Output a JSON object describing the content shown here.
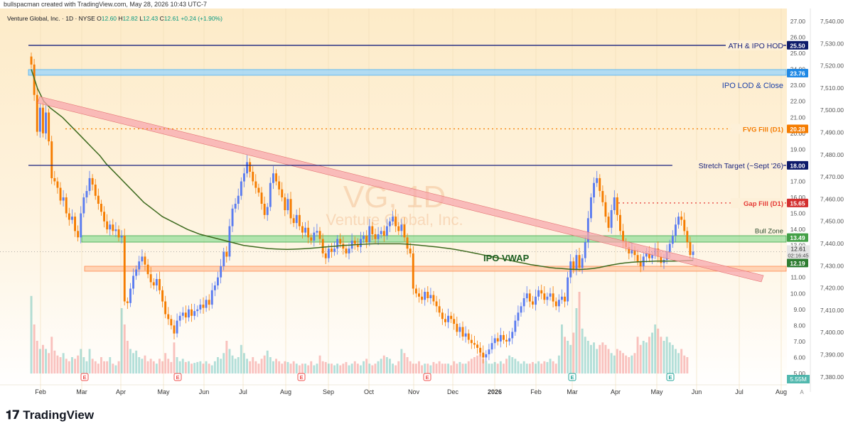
{
  "header": {
    "credit": "bullspacman created with TradingView.com, May 28, 2026 10:43 UTC-7"
  },
  "chart_data": {
    "type": "candlestick",
    "legend": {
      "symbol": "Venture Global, Inc. · 1D · NYSE",
      "open_label": "O",
      "open": "12.60",
      "high_label": "H",
      "high": "12.82",
      "low_label": "L",
      "low": "12.43",
      "close_label": "C",
      "close": "12.61",
      "change": "+0.24 (+1.90%)"
    },
    "watermark": {
      "ticker": "VG, 1D",
      "name": "Venture Global, Inc."
    },
    "left_axis_ticks": [
      "27.00",
      "26.00",
      "25.00",
      "24.00",
      "23.00",
      "22.00",
      "21.00",
      "20.00",
      "19.00",
      "18.00",
      "17.00",
      "16.00",
      "15.00",
      "14.00",
      "13.00",
      "12.00",
      "11.00",
      "10.00",
      "9.00",
      "8.00",
      "7.00",
      "6.00",
      "5.00"
    ],
    "right_axis_ticks": [
      "7,540.00",
      "7,530.00",
      "7,520.00",
      "7,510.00",
      "7,500.00",
      "7,490.00",
      "7,480.00",
      "7,470.00",
      "7,460.00",
      "7,450.00",
      "7,440.00",
      "7,430.00",
      "7,420.00",
      "7,410.00",
      "7,400.00",
      "7,390.00",
      "7,380.00"
    ],
    "x_ticks": [
      "Feb",
      "Mar",
      "Apr",
      "May",
      "Jun",
      "Jul",
      "Aug",
      "Sep",
      "Oct",
      "Nov",
      "Dec",
      "2026",
      "Feb",
      "Mar",
      "Apr",
      "May",
      "Jun",
      "Jul",
      "Aug"
    ],
    "ylim": [
      4.5,
      27.5
    ],
    "levels": [
      {
        "label": "ATH & IPO HOD",
        "price": 25.5,
        "tag": "25.50",
        "color": "#1a237e",
        "style": "solid",
        "tagColor": "#0d1b6b"
      },
      {
        "label": "IPO LOD & Close",
        "price": 23.76,
        "tag": "23.76",
        "color": "#2196f3",
        "style": "zone",
        "tagColor": "#1e88e5"
      },
      {
        "label": "FVG Fill (D1)",
        "price": 20.28,
        "tag": "20.28",
        "color": "#f57c00",
        "style": "dotted",
        "tagColor": "#f57c00"
      },
      {
        "label": "Stretch Target (~Sept '26)",
        "price": 18.0,
        "tag": "18.00",
        "color": "#1a237e",
        "style": "solid",
        "tagColor": "#0d1b6b"
      },
      {
        "label": "Gap Fill (D1)",
        "price": 15.65,
        "tag": "15.65",
        "color": "#e53935",
        "style": "dotted",
        "tagColor": "#d32f2f"
      },
      {
        "label": "Bull Zone",
        "price": 13.49,
        "tag": "13.49",
        "color": "#4caf50",
        "style": "zone",
        "tagColor": "#43a047"
      },
      {
        "label": "",
        "price": 12.19,
        "tag": "12.19",
        "color": "#ff7043",
        "style": "zone",
        "tagColor": "#2e7d32"
      }
    ],
    "price_tag": {
      "value": "12.61",
      "countdown": "02:16:45"
    },
    "volume_tag": "5.55M",
    "vwap_label": "IPO VWAP",
    "earnings_marker": "E",
    "axis_corner": "A",
    "closes": [
      24.3,
      22.4,
      20.1,
      21.6,
      20.0,
      21.3,
      19.5,
      17.2,
      17.0,
      16.6,
      15.8,
      16.0,
      15.0,
      14.6,
      14.8,
      13.9,
      13.5,
      15.0,
      16.0,
      16.4,
      17.2,
      16.8,
      16.1,
      15.6,
      15.1,
      14.5,
      14.0,
      14.3,
      13.9,
      14.0,
      13.5,
      13.6,
      9.5,
      9.4,
      10.3,
      11.1,
      11.5,
      12.0,
      12.3,
      11.8,
      11.2,
      10.7,
      10.5,
      10.9,
      10.2,
      9.5,
      8.7,
      8.4,
      8.0,
      7.5,
      8.3,
      8.6,
      8.8,
      8.5,
      9.0,
      8.6,
      8.9,
      9.0,
      9.3,
      9.1,
      9.6,
      9.3,
      10.2,
      10.5,
      11.0,
      11.7,
      12.6,
      12.3,
      14.2,
      15.3,
      15.6,
      16.1,
      17.0,
      17.5,
      18.2,
      17.6,
      17.0,
      16.6,
      16.3,
      15.6,
      14.9,
      15.4,
      16.9,
      17.5,
      17.0,
      16.5,
      16.0,
      15.2,
      15.9,
      14.7,
      14.4,
      14.9,
      14.2,
      13.8,
      14.1,
      13.5,
      13.3,
      13.8,
      13.9,
      13.4,
      12.5,
      12.2,
      12.8,
      12.6,
      12.8,
      13.4,
      13.1,
      12.8,
      12.5,
      12.8,
      13.3,
      13.1,
      12.9,
      13.4,
      13.6,
      13.2,
      14.2,
      13.7,
      13.4,
      13.7,
      13.9,
      13.6,
      14.2,
      14.5,
      14.8,
      14.2,
      13.9,
      14.3,
      13.5,
      12.8,
      12.5,
      10.3,
      10.0,
      9.8,
      9.6,
      10.1,
      9.7,
      9.9,
      9.5,
      9.2,
      8.8,
      8.4,
      8.2,
      8.6,
      8.4,
      8.1,
      7.6,
      7.9,
      7.3,
      7.5,
      7.1,
      6.9,
      6.8,
      6.6,
      6.3,
      6.0,
      6.2,
      6.5,
      6.9,
      7.2,
      7.0,
      7.4,
      7.1,
      7.0,
      7.2,
      7.6,
      8.3,
      8.8,
      9.2,
      9.7,
      10.0,
      9.5,
      9.3,
      9.8,
      10.2,
      10.0,
      9.6,
      9.8,
      10.0,
      9.5,
      9.2,
      9.6,
      9.8,
      9.5,
      11.0,
      12.0,
      11.5,
      12.4,
      11.6,
      12.2,
      13.2,
      14.7,
      16.0,
      16.9,
      17.2,
      16.4,
      15.7,
      14.8,
      14.1,
      15.2,
      16.0,
      14.9,
      13.9,
      13.2,
      12.9,
      12.5,
      12.7,
      12.4,
      12.0,
      11.7,
      12.3,
      12.5,
      12.2,
      12.4,
      12.8,
      12.3,
      11.9,
      12.1,
      12.6,
      13.1,
      13.6,
      14.3,
      14.8,
      14.6,
      13.9,
      13.2,
      12.4,
      12.61
    ],
    "volume": [
      95,
      60,
      40,
      30,
      35,
      30,
      25,
      45,
      28,
      22,
      20,
      25,
      18,
      15,
      20,
      18,
      22,
      30,
      20,
      15,
      30,
      18,
      15,
      12,
      20,
      15,
      15,
      20,
      12,
      10,
      15,
      80,
      60,
      40,
      30,
      25,
      28,
      20,
      18,
      22,
      15,
      18,
      15,
      12,
      18,
      15,
      25,
      18,
      14,
      38,
      20,
      15,
      18,
      14,
      15,
      12,
      13,
      14,
      15,
      12,
      15,
      12,
      10,
      15,
      20,
      18,
      25,
      40,
      30,
      22,
      18,
      20,
      35,
      25,
      18,
      15,
      20,
      15,
      12,
      18,
      22,
      28,
      20,
      15,
      18,
      15,
      12,
      15,
      14,
      12,
      15,
      12,
      10,
      12,
      12,
      10,
      15,
      10,
      12,
      22,
      15,
      14,
      12,
      12,
      10,
      12,
      10,
      12,
      14,
      10,
      12,
      15,
      12,
      10,
      15,
      18,
      12,
      10,
      12,
      15,
      18,
      22,
      20,
      18,
      12,
      10,
      15,
      30,
      25,
      20,
      15,
      12,
      12,
      15,
      10,
      12,
      12,
      10,
      14,
      12,
      15,
      12,
      12,
      12,
      10,
      15,
      12,
      14,
      12,
      12,
      15,
      18,
      20,
      22,
      25,
      18,
      15,
      12,
      12,
      14,
      12,
      15,
      12,
      18,
      22,
      20,
      18,
      15,
      12,
      15,
      12,
      12,
      14,
      12,
      15,
      12,
      15,
      14,
      18,
      15,
      12,
      22,
      60,
      45,
      40,
      35,
      50,
      80,
      100,
      55,
      45,
      40,
      35,
      38,
      30,
      35,
      38,
      35,
      30,
      25,
      22,
      30,
      28,
      25,
      22,
      20,
      22,
      25,
      45,
      35,
      40,
      38,
      45,
      50,
      60,
      55,
      45,
      40,
      45,
      38,
      35,
      30,
      25,
      30,
      22,
      20
    ],
    "vwap": [
      24.0,
      22.8,
      22.0,
      21.6,
      21.3,
      21.0,
      20.6,
      20.2,
      19.8,
      19.4,
      19.0,
      18.6,
      18.1,
      17.7,
      17.3,
      16.9,
      16.5,
      16.1,
      15.7,
      15.4,
      15.1,
      14.8,
      14.6,
      14.4,
      14.2,
      14.0,
      13.85,
      13.7,
      13.6,
      13.5,
      13.4,
      13.3,
      13.2,
      13.1,
      13.0,
      12.95,
      12.9,
      12.85,
      12.8,
      12.78,
      12.76,
      12.75,
      12.76,
      12.78,
      12.8,
      12.83,
      12.86,
      12.9,
      12.93,
      12.96,
      13.0,
      13.02,
      13.05,
      13.07,
      13.09,
      13.1,
      13.1,
      13.1,
      13.1,
      13.1,
      13.08,
      13.05,
      13.02,
      12.98,
      12.94,
      12.9,
      12.85,
      12.8,
      12.74,
      12.67,
      12.6,
      12.52,
      12.44,
      12.36,
      12.28,
      12.2,
      12.12,
      12.04,
      11.95,
      11.88,
      11.8,
      11.74,
      11.68,
      11.62,
      11.58,
      11.55,
      11.52,
      11.5,
      11.5,
      11.52,
      11.56,
      11.62,
      11.7,
      11.78,
      11.85,
      11.9,
      11.94,
      11.97,
      11.99,
      12.0,
      12.02,
      12.02,
      12.02,
      12.02,
      12.03,
      12.05,
      12.07
    ]
  }
}
